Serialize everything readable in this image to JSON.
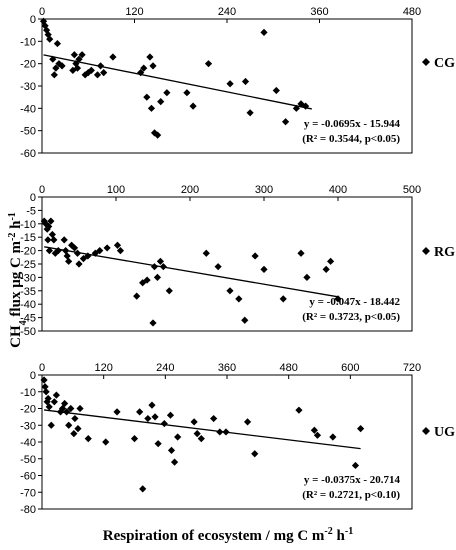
{
  "figure": {
    "ylabel_html": "CH<tspan baseline-shift='sub' font-size='10'>4</tspan> flux μg C m<tspan baseline-shift='super' font-size='10'>-2</tspan> h<tspan baseline-shift='super' font-size='10'>-1</tspan>",
    "xlabel_main": "Respiration of ecosystem / mg C m",
    "xlabel_exp1": "-2",
    "xlabel_mid": " h",
    "xlabel_exp2": "-1"
  },
  "chart_data": [
    {
      "type": "scatter",
      "panel": "CG",
      "series_name": "CG",
      "xlim": [
        0,
        480
      ],
      "ylim": [
        -60,
        0
      ],
      "xticks": [
        0,
        120,
        240,
        360,
        480
      ],
      "yticks": [
        0,
        -10,
        -20,
        -30,
        -40,
        -50,
        -60
      ],
      "equation": "y = -0.0695x - 15.944",
      "stats": "(R² = 0.3544, p<0.05)",
      "trend": {
        "slope": -0.0695,
        "intercept": -15.944,
        "x_range": [
          2,
          350
        ]
      },
      "points": [
        [
          2,
          -1
        ],
        [
          4,
          -3
        ],
        [
          6,
          -5
        ],
        [
          8,
          -7
        ],
        [
          10,
          -9
        ],
        [
          14,
          -18
        ],
        [
          16,
          -25
        ],
        [
          18,
          -22
        ],
        [
          20,
          -11
        ],
        [
          22,
          -20
        ],
        [
          26,
          -21
        ],
        [
          40,
          -23
        ],
        [
          42,
          -16
        ],
        [
          44,
          -20
        ],
        [
          46,
          -22
        ],
        [
          48,
          -18
        ],
        [
          52,
          -16
        ],
        [
          56,
          -25
        ],
        [
          60,
          -24
        ],
        [
          64,
          -23
        ],
        [
          72,
          -25
        ],
        [
          76,
          -21
        ],
        [
          80,
          -24
        ],
        [
          92,
          -17
        ],
        [
          128,
          -24
        ],
        [
          132,
          -22
        ],
        [
          136,
          -35
        ],
        [
          140,
          -17
        ],
        [
          142,
          -40
        ],
        [
          144,
          -21
        ],
        [
          146,
          -51
        ],
        [
          150,
          -52
        ],
        [
          154,
          -37
        ],
        [
          162,
          -33
        ],
        [
          188,
          -33
        ],
        [
          196,
          -39
        ],
        [
          216,
          -20
        ],
        [
          244,
          -29
        ],
        [
          264,
          -28
        ],
        [
          270,
          -42
        ],
        [
          288,
          -6
        ],
        [
          304,
          -32
        ],
        [
          316,
          -46
        ],
        [
          330,
          -40
        ],
        [
          336,
          -38
        ],
        [
          342,
          -39
        ]
      ]
    },
    {
      "type": "scatter",
      "panel": "RG",
      "series_name": "RG",
      "xlim": [
        0,
        500
      ],
      "ylim": [
        -50,
        0
      ],
      "xticks": [
        0,
        100,
        200,
        300,
        400,
        500
      ],
      "yticks": [
        0,
        -5,
        -10,
        -15,
        -20,
        -25,
        -30,
        -35,
        -40,
        -45,
        -50
      ],
      "equation": "y = -0.047x - 18.442",
      "stats": "(R² = 0.3723, p<0.05)",
      "trend": {
        "slope": -0.047,
        "intercept": -18.442,
        "x_range": [
          3,
          400
        ]
      },
      "points": [
        [
          3,
          -9
        ],
        [
          5,
          -10
        ],
        [
          7,
          -12
        ],
        [
          8,
          -16
        ],
        [
          9,
          -11
        ],
        [
          10,
          -20
        ],
        [
          12,
          -9
        ],
        [
          14,
          -14
        ],
        [
          16,
          -16
        ],
        [
          18,
          -21
        ],
        [
          22,
          -20
        ],
        [
          30,
          -16
        ],
        [
          32,
          -20
        ],
        [
          34,
          -22
        ],
        [
          36,
          -24
        ],
        [
          40,
          -18
        ],
        [
          44,
          -19
        ],
        [
          48,
          -21
        ],
        [
          50,
          -25
        ],
        [
          56,
          -23
        ],
        [
          62,
          -22
        ],
        [
          72,
          -21
        ],
        [
          78,
          -20
        ],
        [
          88,
          -19
        ],
        [
          102,
          -18
        ],
        [
          106,
          -20
        ],
        [
          128,
          -37
        ],
        [
          136,
          -32
        ],
        [
          142,
          -31
        ],
        [
          150,
          -47
        ],
        [
          152,
          -26
        ],
        [
          156,
          -30
        ],
        [
          160,
          -24
        ],
        [
          164,
          -26
        ],
        [
          172,
          -35
        ],
        [
          222,
          -21
        ],
        [
          238,
          -26
        ],
        [
          254,
          -35
        ],
        [
          266,
          -38
        ],
        [
          274,
          -46
        ],
        [
          288,
          -22
        ],
        [
          300,
          -27
        ],
        [
          326,
          -38
        ],
        [
          350,
          -21
        ],
        [
          358,
          -30
        ],
        [
          384,
          -27
        ],
        [
          390,
          -24
        ],
        [
          400,
          -38
        ]
      ]
    },
    {
      "type": "scatter",
      "panel": "UG",
      "series_name": "UG",
      "xlim": [
        0,
        720
      ],
      "ylim": [
        -80,
        0
      ],
      "xticks": [
        0,
        120,
        240,
        360,
        480,
        600,
        720
      ],
      "yticks": [
        0,
        -10,
        -20,
        -30,
        -40,
        -50,
        -60,
        -70,
        -80
      ],
      "equation": "y = -0.0375x - 20.714",
      "stats": "(R² = 0.2721, p<0.10)",
      "trend": {
        "slope": -0.0375,
        "intercept": -20.714,
        "x_range": [
          4,
          620
        ]
      },
      "points": [
        [
          4,
          -3
        ],
        [
          6,
          -7
        ],
        [
          8,
          -10
        ],
        [
          10,
          -16
        ],
        [
          12,
          -14
        ],
        [
          14,
          -19
        ],
        [
          18,
          -30
        ],
        [
          24,
          -16
        ],
        [
          28,
          -12
        ],
        [
          36,
          -22
        ],
        [
          40,
          -20
        ],
        [
          44,
          -17
        ],
        [
          48,
          -22
        ],
        [
          52,
          -30
        ],
        [
          56,
          -20
        ],
        [
          62,
          -35
        ],
        [
          64,
          -26
        ],
        [
          70,
          -32
        ],
        [
          74,
          -20
        ],
        [
          90,
          -38
        ],
        [
          124,
          -40
        ],
        [
          146,
          -22
        ],
        [
          180,
          -38
        ],
        [
          190,
          -22
        ],
        [
          196,
          -68
        ],
        [
          206,
          -26
        ],
        [
          214,
          -18
        ],
        [
          220,
          -25
        ],
        [
          226,
          -41
        ],
        [
          238,
          -29
        ],
        [
          250,
          -24
        ],
        [
          252,
          -45
        ],
        [
          258,
          -52
        ],
        [
          264,
          -37
        ],
        [
          296,
          -28
        ],
        [
          302,
          -35
        ],
        [
          310,
          -38
        ],
        [
          334,
          -26
        ],
        [
          346,
          -34
        ],
        [
          358,
          -34
        ],
        [
          400,
          -28
        ],
        [
          414,
          -47
        ],
        [
          500,
          -21
        ],
        [
          530,
          -33
        ],
        [
          536,
          -36
        ],
        [
          566,
          -37
        ],
        [
          610,
          -54
        ],
        [
          620,
          -32
        ]
      ]
    }
  ]
}
